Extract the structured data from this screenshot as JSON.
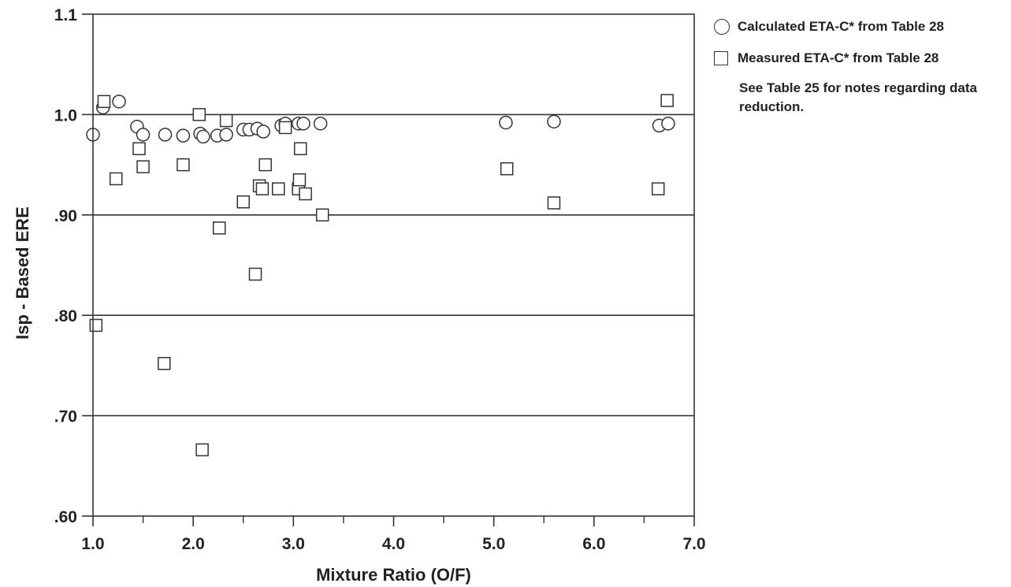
{
  "chart_data": {
    "type": "scatter",
    "xlabel": "Mixture Ratio (O/F)",
    "ylabel": "Isp - Based ERE",
    "xlim": [
      1.0,
      7.0
    ],
    "ylim": [
      0.6,
      1.1
    ],
    "x_ticks": [
      1.0,
      2.0,
      3.0,
      4.0,
      5.0,
      6.0,
      7.0
    ],
    "x_tick_labels": [
      "1.0",
      "2.0",
      "3.0",
      "4.0",
      "5.0",
      "6.0",
      "7.0"
    ],
    "y_ticks": [
      0.6,
      0.7,
      0.8,
      0.9,
      1.0,
      1.1
    ],
    "y_tick_labels": [
      ".60",
      ".70",
      ".80",
      ".90",
      "1.0",
      "1.1"
    ],
    "grid": "horizontal",
    "legend_position": "right",
    "series": [
      {
        "name": "Calculated ETA-C* from Table 28",
        "marker": "circle",
        "x": [
          1.0,
          1.1,
          1.26,
          1.44,
          1.5,
          1.72,
          1.9,
          2.07,
          2.1,
          2.24,
          2.33,
          2.5,
          2.56,
          2.64,
          2.7,
          2.88,
          2.92,
          3.05,
          3.1,
          3.27,
          5.12,
          5.6,
          6.65,
          6.74
        ],
        "y": [
          0.98,
          1.007,
          1.013,
          0.988,
          0.98,
          0.98,
          0.979,
          0.981,
          0.978,
          0.979,
          0.98,
          0.985,
          0.985,
          0.986,
          0.983,
          0.989,
          0.991,
          0.991,
          0.991,
          0.991,
          0.992,
          0.993,
          0.989,
          0.991
        ]
      },
      {
        "name": "Measured ETA-C* from Table 28",
        "marker": "square",
        "x": [
          1.03,
          1.11,
          1.23,
          1.46,
          1.5,
          1.71,
          1.9,
          2.06,
          2.09,
          2.26,
          2.33,
          2.5,
          2.62,
          2.66,
          2.69,
          2.72,
          2.85,
          2.92,
          3.05,
          3.06,
          3.07,
          3.12,
          3.29,
          5.13,
          5.6,
          6.64,
          6.73
        ],
        "y": [
          0.79,
          1.013,
          0.936,
          0.966,
          0.948,
          0.752,
          0.95,
          1.0,
          0.666,
          0.887,
          0.994,
          0.913,
          0.841,
          0.929,
          0.926,
          0.95,
          0.926,
          0.987,
          0.926,
          0.935,
          0.966,
          0.921,
          0.9,
          0.946,
          0.912,
          0.926,
          1.014
        ]
      }
    ],
    "annotation": "See Table 25 for notes regarding data reduction."
  }
}
